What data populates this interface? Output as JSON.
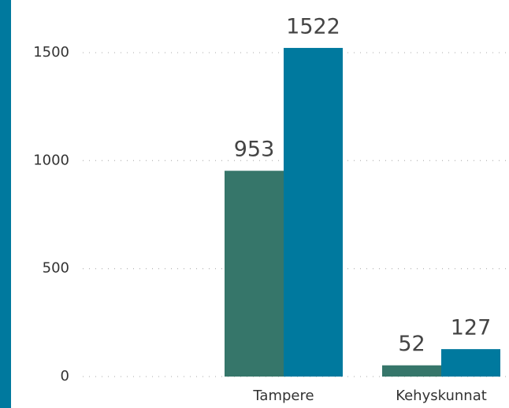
{
  "chart_data": {
    "type": "bar",
    "categories": [
      null,
      "Tampere",
      "Kehyskunnat"
    ],
    "series": [
      {
        "color": "#36766a",
        "values": [
          null,
          953,
          52
        ]
      },
      {
        "color": "#00799e",
        "values": [
          null,
          1522,
          127
        ]
      }
    ],
    "ylim": [
      0,
      1500
    ],
    "yticks": [
      0,
      500,
      1000,
      1500
    ],
    "grid": true
  }
}
